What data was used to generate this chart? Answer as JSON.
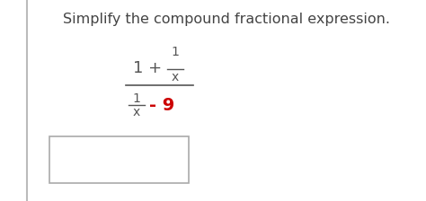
{
  "title": "Simplify the compound fractional expression.",
  "title_color": "#444444",
  "title_fontsize": 11.5,
  "bg_color": "#ffffff",
  "left_bar_color": "#bbbbbb",
  "text_color": "#555555",
  "red_color": "#cc0000",
  "main_fontsize": 13,
  "small_fontsize": 10,
  "minus_nine": "- 9"
}
